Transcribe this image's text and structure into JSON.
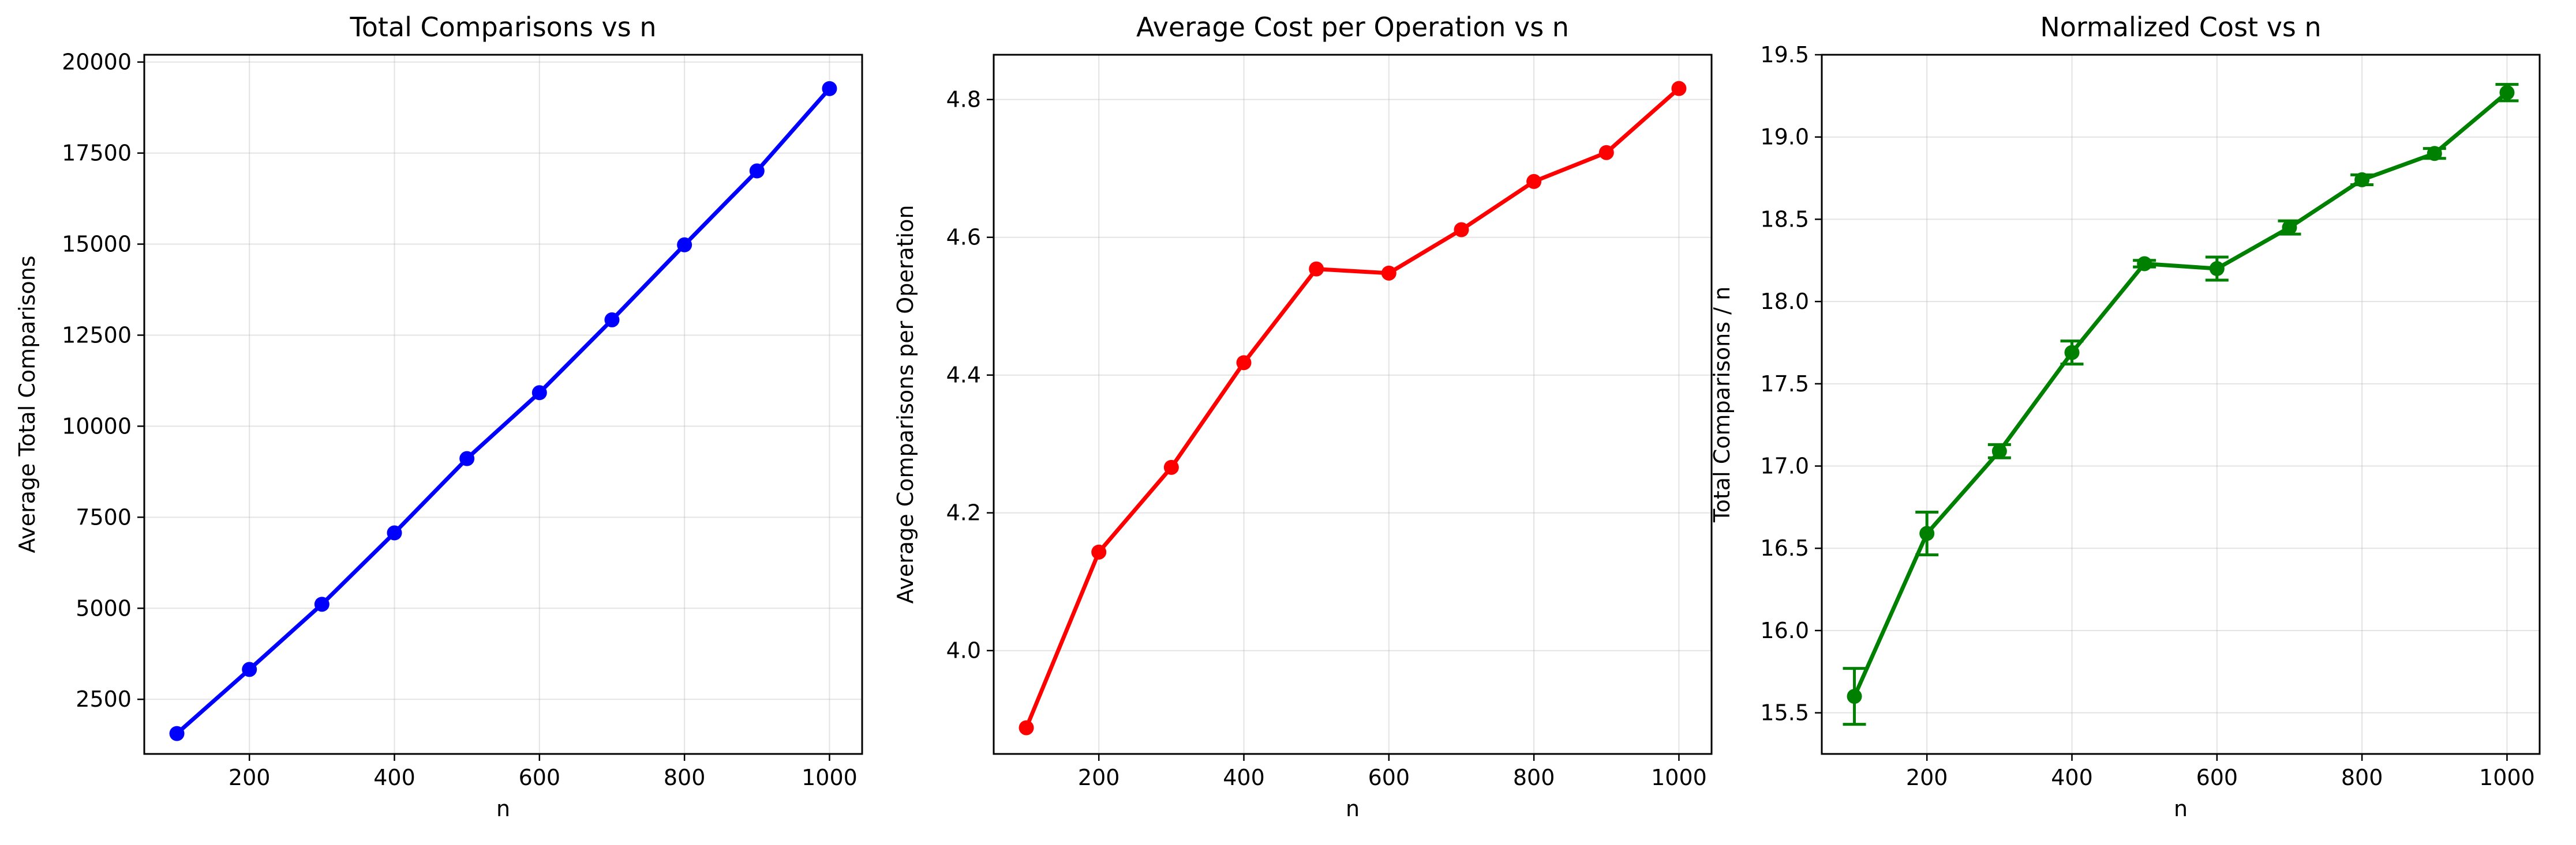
{
  "chart_data": [
    {
      "type": "line",
      "title": "Total Comparisons vs n",
      "xlabel": "n",
      "ylabel": "Average Total Comparisons",
      "xlim": [
        55,
        1045
      ],
      "ylim": [
        1000,
        20200
      ],
      "xticks": [
        200,
        400,
        600,
        800,
        1000
      ],
      "yticks": [
        2500,
        5000,
        7500,
        10000,
        12500,
        15000,
        17500,
        20000
      ],
      "grid": true,
      "color": "#0000ff",
      "series": [
        {
          "x": [
            100,
            200,
            300,
            400,
            500,
            600,
            700,
            800,
            900,
            1000
          ],
          "y": [
            1560,
            3320,
            5110,
            7070,
            9110,
            10920,
            12920,
            14980,
            17010,
            19270
          ]
        }
      ]
    },
    {
      "type": "line",
      "title": "Average Cost per Operation vs n",
      "xlabel": "n",
      "ylabel": "Average Comparisons per Operation",
      "xlim": [
        55,
        1045
      ],
      "ylim": [
        3.85,
        4.865
      ],
      "xticks": [
        200,
        400,
        600,
        800,
        1000
      ],
      "yticks": [
        4.0,
        4.2,
        4.4,
        4.6,
        4.8
      ],
      "ytick_decimals": 1,
      "grid": true,
      "color": "#ff0000",
      "series": [
        {
          "x": [
            100,
            200,
            300,
            400,
            500,
            600,
            700,
            800,
            900,
            1000
          ],
          "y": [
            3.888,
            4.143,
            4.266,
            4.418,
            4.554,
            4.548,
            4.611,
            4.681,
            4.723,
            4.816
          ]
        }
      ]
    },
    {
      "type": "line",
      "title": "Normalized Cost vs n",
      "xlabel": "n",
      "ylabel": "Total Comparisons / n",
      "xlim": [
        55,
        1045
      ],
      "ylim": [
        15.25,
        19.5
      ],
      "xticks": [
        200,
        400,
        600,
        800,
        1000
      ],
      "yticks": [
        15.5,
        16.0,
        16.5,
        17.0,
        17.5,
        18.0,
        18.5,
        19.0,
        19.5
      ],
      "ytick_decimals": 1,
      "grid": true,
      "color": "#008000",
      "series": [
        {
          "x": [
            100,
            200,
            300,
            400,
            500,
            600,
            700,
            800,
            900,
            1000
          ],
          "y": [
            15.6,
            16.59,
            17.09,
            17.69,
            18.23,
            18.2,
            18.45,
            18.74,
            18.9,
            19.27
          ],
          "yerr": [
            0.17,
            0.13,
            0.04,
            0.07,
            0.02,
            0.07,
            0.04,
            0.03,
            0.03,
            0.05
          ]
        }
      ]
    }
  ]
}
